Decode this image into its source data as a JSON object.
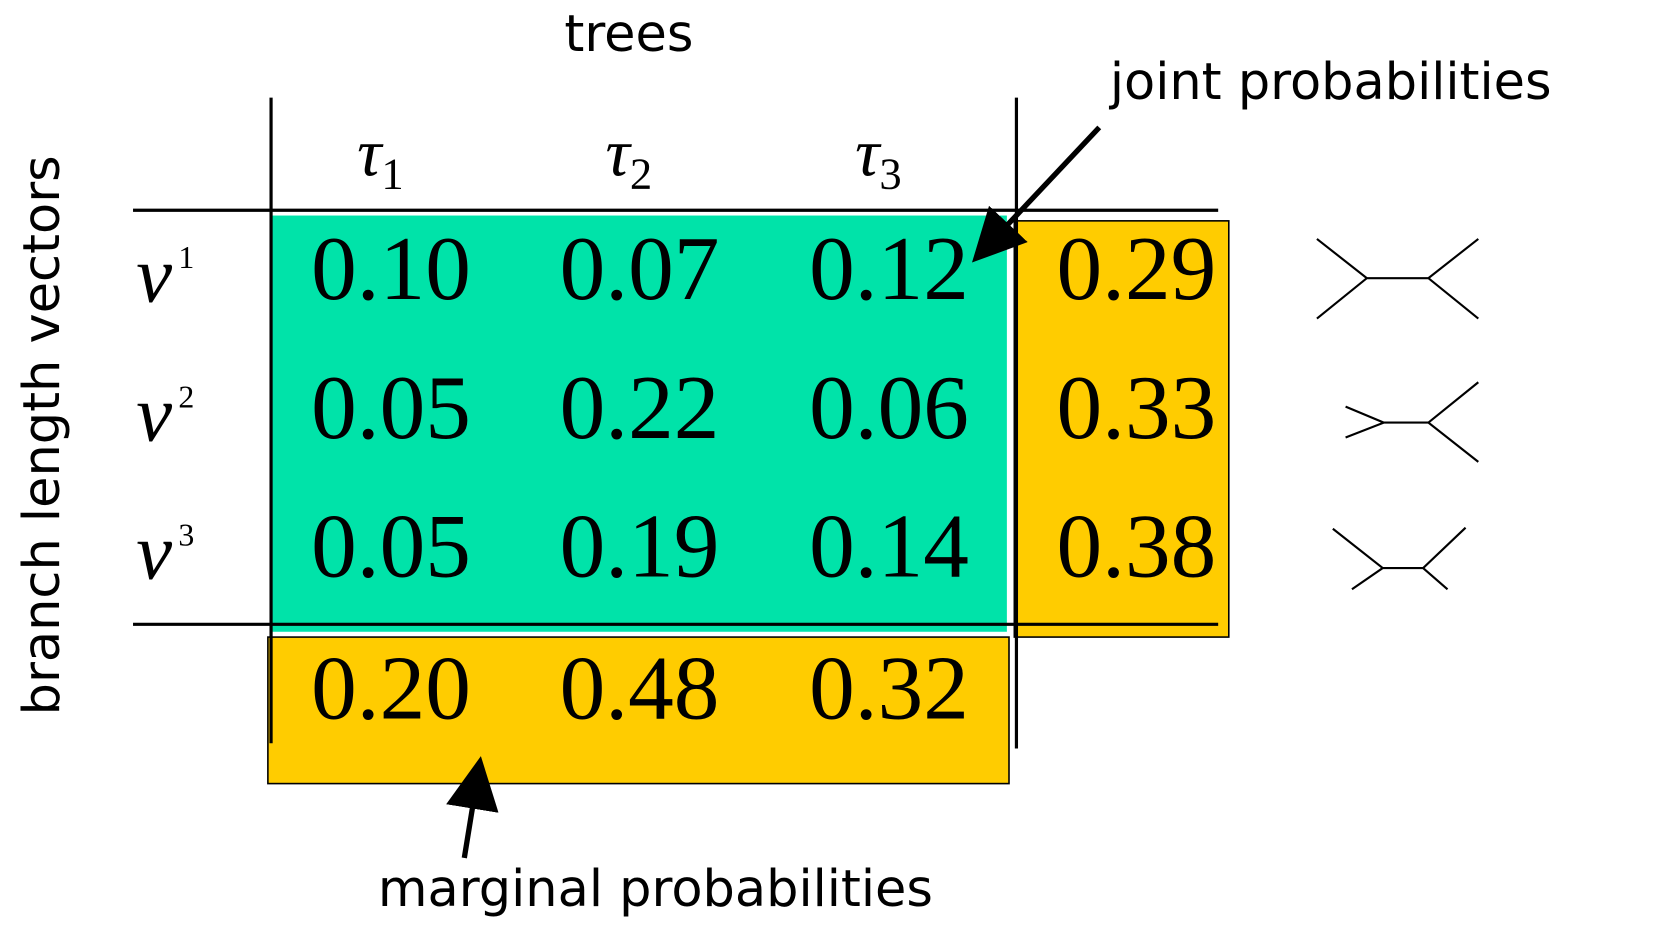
{
  "header": {
    "column_title": "trees",
    "row_title": "branch length vectors"
  },
  "table": {
    "columns": [
      {
        "symbol": "τ",
        "index": "1"
      },
      {
        "symbol": "τ",
        "index": "2"
      },
      {
        "symbol": "τ",
        "index": "3"
      }
    ],
    "rows": [
      {
        "symbol": "ν",
        "index": "1"
      },
      {
        "symbol": "ν",
        "index": "2"
      },
      {
        "symbol": "ν",
        "index": "3"
      }
    ],
    "cells": [
      [
        "0.10",
        "0.07",
        "0.12"
      ],
      [
        "0.05",
        "0.22",
        "0.06"
      ],
      [
        "0.05",
        "0.19",
        "0.14"
      ]
    ],
    "row_marginals": [
      "0.29",
      "0.33",
      "0.38"
    ],
    "column_marginals": [
      "0.20",
      "0.48",
      "0.32"
    ]
  },
  "annotations": {
    "joint": "joint probabilities",
    "marginal": "marginal probabilities"
  }
}
